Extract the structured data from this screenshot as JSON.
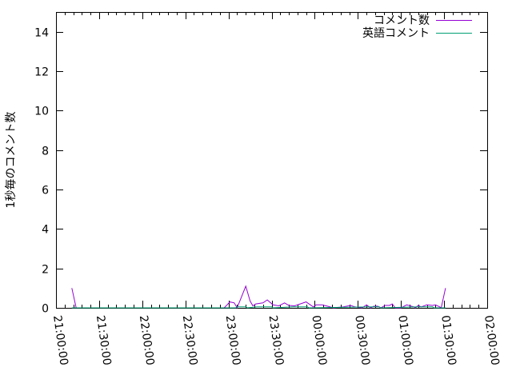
{
  "chart_data": {
    "type": "line",
    "title": "",
    "xlabel": "",
    "ylabel": "1秒毎のコメント数",
    "xlim": [
      "21:00:00",
      "02:00:00"
    ],
    "ylim": [
      0,
      15
    ],
    "x_ticks": [
      "21:00:00",
      "21:30:00",
      "22:00:00",
      "22:30:00",
      "23:00:00",
      "23:30:00",
      "00:00:00",
      "00:30:00",
      "01:00:00",
      "01:30:00",
      "02:00:00"
    ],
    "y_ticks": [
      "0",
      "2",
      "4",
      "6",
      "8",
      "10",
      "12",
      "14"
    ],
    "grid": false,
    "legend_position": "top-right",
    "series": [
      {
        "name": "コメント数",
        "color": "#9400d3",
        "points": [
          [
            "21:11:00",
            1.0
          ],
          [
            "21:14:00",
            0
          ],
          [
            "22:50:00",
            0
          ],
          [
            "22:57:00",
            0
          ],
          [
            "23:01:00",
            0.3
          ],
          [
            "23:04:00",
            0.25
          ],
          [
            "23:06:00",
            0
          ],
          [
            "23:12:00",
            1.1
          ],
          [
            "23:15:00",
            0.35
          ],
          [
            "23:17:00",
            0.1
          ],
          [
            "23:19:00",
            0.2
          ],
          [
            "23:24:00",
            0.25
          ],
          [
            "23:27:00",
            0.4
          ],
          [
            "23:31:00",
            0.15
          ],
          [
            "23:35:00",
            0.1
          ],
          [
            "23:39:00",
            0.25
          ],
          [
            "23:42:00",
            0.12
          ],
          [
            "23:46:00",
            0.1
          ],
          [
            "23:54:00",
            0.3
          ],
          [
            "23:59:00",
            0.05
          ],
          [
            "00:01:00",
            0.15
          ],
          [
            "00:05:00",
            0.15
          ],
          [
            "00:09:00",
            0.08
          ],
          [
            "00:13:00",
            0
          ],
          [
            "00:20:00",
            0.05
          ],
          [
            "00:25:00",
            0.12
          ],
          [
            "00:28:00",
            0.05
          ],
          [
            "00:33:00",
            0
          ],
          [
            "00:36:00",
            0.15
          ],
          [
            "00:39:00",
            0
          ],
          [
            "00:41:00",
            0.08
          ],
          [
            "00:44:00",
            0.08
          ],
          [
            "00:46:00",
            0
          ],
          [
            "00:49:00",
            0.12
          ],
          [
            "00:52:00",
            0.12
          ],
          [
            "00:54:00",
            0.2
          ],
          [
            "00:56:00",
            0
          ],
          [
            "01:00:00",
            0
          ],
          [
            "01:04:00",
            0.15
          ],
          [
            "01:09:00",
            0.05
          ],
          [
            "01:10:00",
            0
          ],
          [
            "01:12:00",
            0.12
          ],
          [
            "01:14:00",
            0.05
          ],
          [
            "01:18:00",
            0.15
          ],
          [
            "01:22:00",
            0.12
          ],
          [
            "01:24:00",
            0.15
          ],
          [
            "01:27:00",
            0.05
          ],
          [
            "01:28:00",
            0
          ],
          [
            "01:31:00",
            1.0
          ]
        ]
      },
      {
        "name": "英語コメント",
        "color": "#009e73",
        "points": [
          [
            "21:11:00",
            0
          ],
          [
            "23:05:00",
            0
          ],
          [
            "23:06:00",
            0.05
          ],
          [
            "23:12:00",
            0.05
          ],
          [
            "23:13:00",
            0
          ],
          [
            "23:20:00",
            0.05
          ],
          [
            "23:30:00",
            0.05
          ],
          [
            "23:31:00",
            0
          ],
          [
            "23:45:00",
            0.05
          ],
          [
            "23:55:00",
            0.05
          ],
          [
            "23:56:00",
            0
          ],
          [
            "00:40:00",
            0.05
          ],
          [
            "00:45:00",
            0.05
          ],
          [
            "00:46:00",
            0
          ],
          [
            "01:12:00",
            0.05
          ],
          [
            "01:22:00",
            0.05
          ],
          [
            "01:23:00",
            0
          ],
          [
            "01:31:00",
            0
          ]
        ]
      }
    ]
  }
}
